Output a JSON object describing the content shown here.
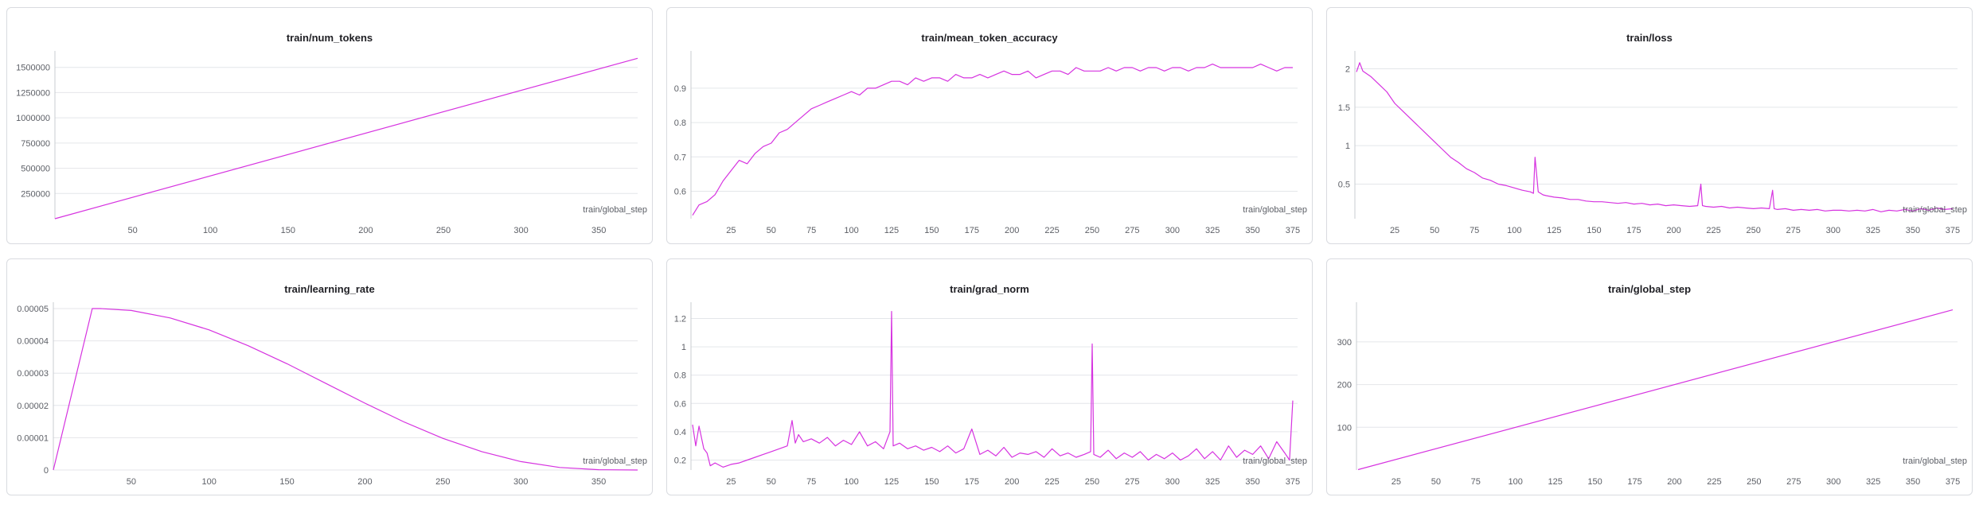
{
  "theme": {
    "series_color": "#d633e0"
  },
  "chart_data": [
    {
      "id": "num_tokens",
      "type": "line",
      "title": "train/num_tokens",
      "xlabel": "train/global_step",
      "ylabel": "",
      "xlim": [
        0,
        375
      ],
      "ylim": [
        0,
        1600000
      ],
      "xticks": [
        50,
        100,
        150,
        200,
        250,
        300,
        350
      ],
      "yticks": [
        250000,
        500000,
        750000,
        1000000,
        1250000,
        1500000
      ],
      "ytick_labels": [
        "250000",
        "500000",
        "750000",
        "1000000",
        "1250000",
        "1500000"
      ],
      "series": [
        {
          "x": [
            0,
            375
          ],
          "y": [
            0,
            1590000
          ]
        }
      ]
    },
    {
      "id": "mean_token_accuracy",
      "type": "line",
      "title": "train/mean_token_accuracy",
      "xlabel": "train/global_step",
      "ylabel": "",
      "xlim": [
        0,
        378
      ],
      "ylim": [
        0.52,
        0.99
      ],
      "xticks": [
        25,
        50,
        75,
        100,
        125,
        150,
        175,
        200,
        225,
        250,
        275,
        300,
        325,
        350,
        375
      ],
      "yticks": [
        0.6,
        0.7,
        0.8,
        0.9
      ],
      "ytick_labels": [
        "0.6",
        "0.7",
        "0.8",
        "0.9"
      ],
      "series": [
        {
          "x": [
            1,
            5,
            10,
            15,
            20,
            25,
            30,
            35,
            40,
            45,
            50,
            55,
            60,
            65,
            70,
            75,
            80,
            85,
            90,
            95,
            100,
            105,
            110,
            115,
            120,
            125,
            130,
            135,
            140,
            145,
            150,
            155,
            160,
            165,
            170,
            175,
            180,
            185,
            190,
            195,
            200,
            205,
            210,
            215,
            220,
            225,
            230,
            235,
            240,
            245,
            250,
            255,
            260,
            265,
            270,
            275,
            280,
            285,
            290,
            295,
            300,
            305,
            310,
            315,
            320,
            325,
            330,
            335,
            340,
            345,
            350,
            355,
            360,
            365,
            370,
            375
          ],
          "y": [
            0.53,
            0.56,
            0.57,
            0.59,
            0.63,
            0.66,
            0.69,
            0.68,
            0.71,
            0.73,
            0.74,
            0.77,
            0.78,
            0.8,
            0.82,
            0.84,
            0.85,
            0.86,
            0.87,
            0.88,
            0.89,
            0.88,
            0.9,
            0.9,
            0.91,
            0.92,
            0.92,
            0.91,
            0.93,
            0.92,
            0.93,
            0.93,
            0.92,
            0.94,
            0.93,
            0.93,
            0.94,
            0.93,
            0.94,
            0.95,
            0.94,
            0.94,
            0.95,
            0.93,
            0.94,
            0.95,
            0.95,
            0.94,
            0.96,
            0.95,
            0.95,
            0.95,
            0.96,
            0.95,
            0.96,
            0.96,
            0.95,
            0.96,
            0.96,
            0.95,
            0.96,
            0.96,
            0.95,
            0.96,
            0.96,
            0.97,
            0.96,
            0.96,
            0.96,
            0.96,
            0.96,
            0.97,
            0.96,
            0.95,
            0.96,
            0.96
          ]
        }
      ]
    },
    {
      "id": "loss",
      "type": "line",
      "title": "train/loss",
      "xlabel": "train/global_step",
      "ylabel": "",
      "xlim": [
        0,
        378
      ],
      "ylim": [
        0.05,
        2.15
      ],
      "xticks": [
        25,
        50,
        75,
        100,
        125,
        150,
        175,
        200,
        225,
        250,
        275,
        300,
        325,
        350,
        375
      ],
      "yticks": [
        0.5,
        1,
        1.5,
        2
      ],
      "ytick_labels": [
        "0.5",
        "1",
        "1.5",
        "2"
      ],
      "series": [
        {
          "x": [
            1,
            3,
            5,
            10,
            15,
            20,
            25,
            30,
            35,
            40,
            45,
            50,
            55,
            60,
            65,
            70,
            75,
            80,
            85,
            90,
            95,
            100,
            105,
            110,
            112,
            113,
            115,
            118,
            120,
            125,
            130,
            135,
            140,
            145,
            150,
            155,
            160,
            165,
            170,
            175,
            180,
            185,
            190,
            195,
            200,
            205,
            210,
            215,
            217,
            218,
            220,
            225,
            230,
            235,
            240,
            245,
            250,
            255,
            260,
            262,
            263,
            265,
            270,
            275,
            280,
            285,
            290,
            295,
            300,
            305,
            310,
            315,
            320,
            325,
            330,
            335,
            340,
            345,
            350,
            355,
            360,
            365,
            370,
            375
          ],
          "y": [
            1.96,
            2.08,
            1.97,
            1.9,
            1.8,
            1.7,
            1.55,
            1.45,
            1.35,
            1.25,
            1.15,
            1.05,
            0.95,
            0.85,
            0.78,
            0.7,
            0.65,
            0.58,
            0.55,
            0.5,
            0.48,
            0.45,
            0.42,
            0.4,
            0.38,
            0.85,
            0.4,
            0.36,
            0.35,
            0.33,
            0.32,
            0.3,
            0.3,
            0.28,
            0.27,
            0.27,
            0.26,
            0.25,
            0.26,
            0.24,
            0.25,
            0.23,
            0.24,
            0.22,
            0.23,
            0.22,
            0.21,
            0.22,
            0.5,
            0.22,
            0.21,
            0.2,
            0.21,
            0.19,
            0.2,
            0.19,
            0.18,
            0.19,
            0.18,
            0.42,
            0.18,
            0.17,
            0.18,
            0.16,
            0.17,
            0.16,
            0.17,
            0.15,
            0.16,
            0.16,
            0.15,
            0.16,
            0.15,
            0.17,
            0.14,
            0.16,
            0.15,
            0.17,
            0.15,
            0.18,
            0.16,
            0.19,
            0.17,
            0.18
          ]
        }
      ]
    },
    {
      "id": "learning_rate",
      "type": "line",
      "title": "train/learning_rate",
      "xlabel": "train/global_step",
      "ylabel": "",
      "xlim": [
        0,
        375
      ],
      "ylim": [
        0,
        5e-05
      ],
      "xticks": [
        50,
        100,
        150,
        200,
        250,
        300,
        350
      ],
      "yticks": [
        0,
        1e-05,
        2e-05,
        3e-05,
        4e-05,
        5e-05
      ],
      "ytick_labels": [
        "0",
        "0.00001",
        "0.00002",
        "0.00003",
        "0.00004",
        "0.00005"
      ],
      "series": [
        {
          "x": [
            0,
            25,
            30,
            50,
            75,
            100,
            125,
            150,
            175,
            200,
            225,
            250,
            275,
            300,
            325,
            350,
            375
          ],
          "y": [
            0,
            5e-05,
            5e-05,
            4.94e-05,
            4.71e-05,
            4.34e-05,
            3.85e-05,
            3.29e-05,
            2.68e-05,
            2.07e-05,
            1.49e-05,
            9.8e-06,
            5.7e-06,
            2.6e-06,
            8e-07,
            1e-07,
            0
          ]
        }
      ]
    },
    {
      "id": "grad_norm",
      "type": "line",
      "title": "train/grad_norm",
      "xlabel": "train/global_step",
      "ylabel": "",
      "xlim": [
        0,
        378
      ],
      "ylim": [
        0.13,
        1.27
      ],
      "xticks": [
        25,
        50,
        75,
        100,
        125,
        150,
        175,
        200,
        225,
        250,
        275,
        300,
        325,
        350,
        375
      ],
      "yticks": [
        0.2,
        0.4,
        0.6,
        0.8,
        1,
        1.2
      ],
      "ytick_labels": [
        "0.2",
        "0.4",
        "0.6",
        "0.8",
        "1",
        "1.2"
      ],
      "series": [
        {
          "x": [
            1,
            3,
            5,
            8,
            10,
            12,
            15,
            20,
            25,
            30,
            35,
            40,
            45,
            50,
            55,
            60,
            63,
            65,
            67,
            70,
            75,
            80,
            85,
            90,
            95,
            100,
            105,
            110,
            115,
            120,
            124,
            125,
            126,
            130,
            135,
            140,
            145,
            150,
            155,
            160,
            165,
            170,
            175,
            180,
            185,
            190,
            195,
            200,
            205,
            210,
            215,
            220,
            225,
            230,
            235,
            240,
            245,
            249,
            250,
            251,
            255,
            260,
            265,
            270,
            275,
            280,
            285,
            290,
            295,
            300,
            305,
            310,
            315,
            320,
            325,
            330,
            335,
            340,
            345,
            350,
            355,
            360,
            365,
            370,
            373,
            375
          ],
          "y": [
            0.45,
            0.3,
            0.44,
            0.28,
            0.25,
            0.16,
            0.18,
            0.15,
            0.17,
            0.18,
            0.2,
            0.22,
            0.24,
            0.26,
            0.28,
            0.3,
            0.48,
            0.32,
            0.38,
            0.33,
            0.35,
            0.32,
            0.36,
            0.3,
            0.34,
            0.31,
            0.4,
            0.3,
            0.33,
            0.28,
            0.4,
            1.25,
            0.3,
            0.32,
            0.28,
            0.3,
            0.27,
            0.29,
            0.26,
            0.3,
            0.25,
            0.28,
            0.42,
            0.24,
            0.27,
            0.23,
            0.29,
            0.22,
            0.25,
            0.24,
            0.26,
            0.22,
            0.28,
            0.23,
            0.25,
            0.22,
            0.24,
            0.26,
            1.02,
            0.24,
            0.22,
            0.27,
            0.21,
            0.25,
            0.22,
            0.26,
            0.2,
            0.24,
            0.21,
            0.25,
            0.2,
            0.23,
            0.28,
            0.21,
            0.26,
            0.2,
            0.3,
            0.22,
            0.27,
            0.24,
            0.3,
            0.21,
            0.33,
            0.25,
            0.2,
            0.62
          ]
        }
      ]
    },
    {
      "id": "global_step",
      "type": "line",
      "title": "train/global_step",
      "xlabel": "train/global_step",
      "ylabel": "",
      "xlim": [
        0,
        378
      ],
      "ylim": [
        0,
        378
      ],
      "xticks": [
        25,
        50,
        75,
        100,
        125,
        150,
        175,
        200,
        225,
        250,
        275,
        300,
        325,
        350,
        375
      ],
      "yticks": [
        100,
        200,
        300
      ],
      "ytick_labels": [
        "100",
        "200",
        "300"
      ],
      "series": [
        {
          "x": [
            1,
            375
          ],
          "y": [
            1,
            375
          ]
        }
      ]
    }
  ]
}
